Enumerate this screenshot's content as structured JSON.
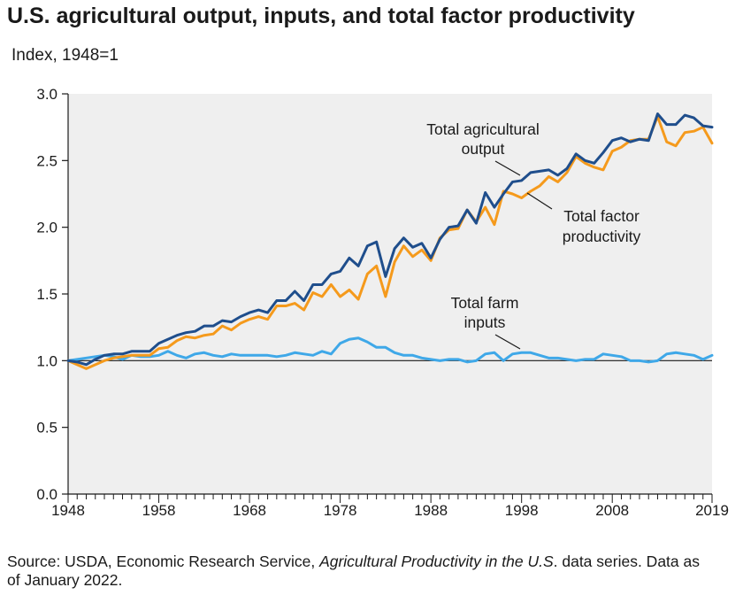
{
  "header": {
    "title": "U.S. agricultural output, inputs, and total factor productivity",
    "subtitle": "Index, 1948=1"
  },
  "footer": {
    "source_prefix": "Source: USDA, Economic Research Service, ",
    "source_italic": "Agricultural Productivity in the U.S",
    "source_suffix": ". data series. Data as of January 2022."
  },
  "chart_data": {
    "type": "line",
    "title": "U.S. agricultural output, inputs, and total factor productivity",
    "ylabel": "Index, 1948=1",
    "xlabel": "",
    "xlim": [
      1948,
      2019
    ],
    "ylim": [
      0,
      3
    ],
    "x_ticks": [
      1948,
      1958,
      1968,
      1978,
      1988,
      1998,
      2008,
      2019
    ],
    "y_ticks": [
      "0.0",
      "0.5",
      "1.0",
      "1.5",
      "2.0",
      "2.5",
      "3.0"
    ],
    "reference_line": 1.0,
    "x": [
      1948,
      1949,
      1950,
      1951,
      1952,
      1953,
      1954,
      1955,
      1956,
      1957,
      1958,
      1959,
      1960,
      1961,
      1962,
      1963,
      1964,
      1965,
      1966,
      1967,
      1968,
      1969,
      1970,
      1971,
      1972,
      1973,
      1974,
      1975,
      1976,
      1977,
      1978,
      1979,
      1980,
      1981,
      1982,
      1983,
      1984,
      1985,
      1986,
      1987,
      1988,
      1989,
      1990,
      1991,
      1992,
      1993,
      1994,
      1995,
      1996,
      1997,
      1998,
      1999,
      2000,
      2001,
      2002,
      2003,
      2004,
      2005,
      2006,
      2007,
      2008,
      2009,
      2010,
      2011,
      2012,
      2013,
      2014,
      2015,
      2016,
      2017,
      2018,
      2019
    ],
    "series": [
      {
        "name": "Total agricultural output",
        "color": "#1f4e8c",
        "values": [
          1.0,
          0.99,
          0.97,
          1.01,
          1.04,
          1.05,
          1.05,
          1.07,
          1.07,
          1.07,
          1.13,
          1.16,
          1.19,
          1.21,
          1.22,
          1.26,
          1.26,
          1.3,
          1.29,
          1.33,
          1.36,
          1.38,
          1.36,
          1.45,
          1.45,
          1.52,
          1.45,
          1.57,
          1.57,
          1.65,
          1.67,
          1.77,
          1.71,
          1.86,
          1.89,
          1.63,
          1.84,
          1.92,
          1.85,
          1.88,
          1.77,
          1.91,
          2.0,
          2.01,
          2.13,
          2.03,
          2.26,
          2.15,
          2.25,
          2.34,
          2.35,
          2.41,
          2.42,
          2.43,
          2.39,
          2.44,
          2.55,
          2.5,
          2.48,
          2.56,
          2.65,
          2.67,
          2.64,
          2.66,
          2.65,
          2.85,
          2.77,
          2.77,
          2.84,
          2.82,
          2.76,
          2.75
        ]
      },
      {
        "name": "Total factor productivity",
        "color": "#f59a1c",
        "values": [
          1.0,
          0.97,
          0.94,
          0.97,
          1.0,
          1.02,
          1.03,
          1.04,
          1.04,
          1.04,
          1.09,
          1.1,
          1.15,
          1.18,
          1.17,
          1.19,
          1.2,
          1.26,
          1.23,
          1.28,
          1.31,
          1.33,
          1.31,
          1.41,
          1.41,
          1.43,
          1.38,
          1.51,
          1.48,
          1.57,
          1.48,
          1.53,
          1.46,
          1.65,
          1.71,
          1.48,
          1.74,
          1.86,
          1.78,
          1.83,
          1.75,
          1.92,
          1.98,
          1.99,
          2.13,
          2.04,
          2.15,
          2.02,
          2.27,
          2.25,
          2.22,
          2.27,
          2.31,
          2.38,
          2.34,
          2.41,
          2.53,
          2.48,
          2.45,
          2.43,
          2.57,
          2.6,
          2.65,
          2.66,
          2.66,
          2.83,
          2.64,
          2.61,
          2.71,
          2.72,
          2.75,
          2.63
        ]
      },
      {
        "name": "Total farm inputs",
        "color": "#3fa8e8",
        "values": [
          1.0,
          1.01,
          1.02,
          1.03,
          1.04,
          1.03,
          1.01,
          1.04,
          1.03,
          1.03,
          1.04,
          1.07,
          1.04,
          1.02,
          1.05,
          1.06,
          1.04,
          1.03,
          1.05,
          1.04,
          1.04,
          1.04,
          1.04,
          1.03,
          1.04,
          1.06,
          1.05,
          1.04,
          1.07,
          1.05,
          1.13,
          1.16,
          1.17,
          1.14,
          1.1,
          1.1,
          1.06,
          1.04,
          1.04,
          1.02,
          1.01,
          1.0,
          1.01,
          1.01,
          0.99,
          1.0,
          1.05,
          1.06,
          1.0,
          1.05,
          1.06,
          1.06,
          1.04,
          1.02,
          1.02,
          1.01,
          1.0,
          1.01,
          1.01,
          1.05,
          1.04,
          1.03,
          1.0,
          1.0,
          0.99,
          1.0,
          1.05,
          1.06,
          1.05,
          1.04,
          1.01,
          1.04
        ]
      }
    ],
    "annotations": [
      {
        "lines": [
          "Total agricultural",
          "output"
        ],
        "series": "Total agricultural output"
      },
      {
        "lines": [
          "Total factor",
          "productivity"
        ],
        "series": "Total factor productivity"
      },
      {
        "lines": [
          "Total farm",
          "inputs"
        ],
        "series": "Total farm inputs"
      }
    ]
  }
}
